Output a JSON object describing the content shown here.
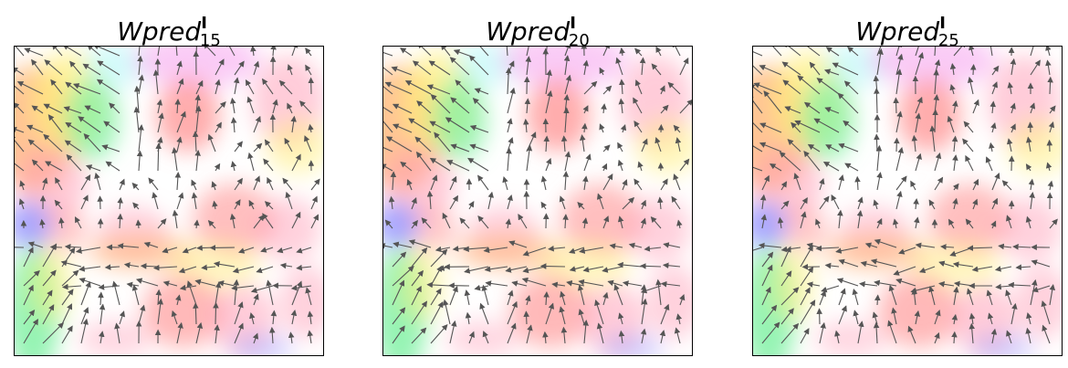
{
  "chart_data": [
    {
      "type": "vector-field",
      "title_main": "Wpred",
      "title_sup": "I",
      "title_sub": "15",
      "grid": false,
      "axes_ticks": false
    },
    {
      "type": "vector-field",
      "title_main": "Wpred",
      "title_sup": "I",
      "title_sub": "20",
      "grid": false,
      "axes_ticks": false
    },
    {
      "type": "vector-field",
      "title_main": "Wpred",
      "title_sup": "I",
      "title_sub": "25",
      "grid": false,
      "axes_ticks": false
    }
  ],
  "colors": {
    "arrow": "#555555",
    "blobs": [
      {
        "name": "orange",
        "hex": "#ffb070"
      },
      {
        "name": "yellow",
        "hex": "#fff07a"
      },
      {
        "name": "green",
        "hex": "#7af0a0"
      },
      {
        "name": "pink",
        "hex": "#ff9ab4"
      },
      {
        "name": "red",
        "hex": "#ff8a8a"
      },
      {
        "name": "blue",
        "hex": "#9a9aff"
      },
      {
        "name": "magenta",
        "hex": "#f7a8f0"
      },
      {
        "name": "cyan",
        "hex": "#a8f7f7"
      }
    ]
  }
}
